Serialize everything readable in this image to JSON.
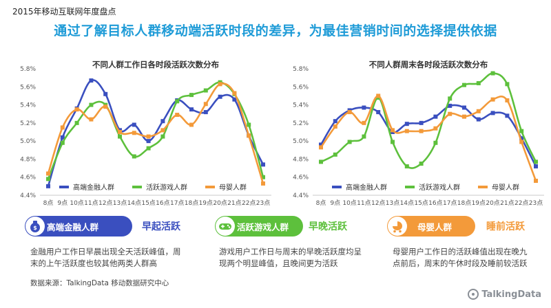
{
  "page": {
    "top_title": "2015年移动互联网年度盘点",
    "headline": "通过了解目标人群移动端活跃时段的差异，为最佳营销时间的选择提供依据",
    "source": "数据来源：TalkingData 移动数据研究中心",
    "logo_text": "TalkingData"
  },
  "colors": {
    "finance": "#3a4fbf",
    "gamer": "#5dc03c",
    "mother": "#f39a3a",
    "headline": "#1e9bd7"
  },
  "personas": [
    {
      "label": "高端金融人群",
      "icon": "money-bag-icon",
      "tag": "早起活跃",
      "color": "#3a4fbf",
      "desc_lines": [
        "金融用户工作日早晨出现全天活跃峰值，周",
        "末的上午活跃度也较其他两类人群高"
      ]
    },
    {
      "label": "活跃游戏人群",
      "icon": "gamepad-icon",
      "tag": "早晚活跃",
      "color": "#5dc03c",
      "desc_lines": [
        "游戏用户工作日与周末的早晚活跃度均呈",
        "现两个明显峰值，且晚间更为活跃"
      ]
    },
    {
      "label": "母婴人群",
      "icon": "stroller-icon",
      "tag": "睡前活跃",
      "color": "#f39a3a",
      "desc_lines": [
        "母婴用户工作日的活跃峰值出现在晚九",
        "点前后，周末的午休时段及睡前较活跃"
      ]
    }
  ],
  "chart_data": [
    {
      "type": "line",
      "title": "不同人群工作日各时段活跃次数分布",
      "categories": [
        "8点",
        "9点",
        "10点",
        "11点",
        "12点",
        "13点",
        "14点",
        "15点",
        "16点",
        "17点",
        "18点",
        "19点",
        "20点",
        "21点",
        "22点",
        "23点"
      ],
      "yticks": [
        "4.4%",
        "4.6%",
        "4.8%",
        "5.0%",
        "5.2%",
        "5.4%",
        "5.6%",
        "5.8%"
      ],
      "ylim": [
        4.4,
        5.8
      ],
      "legend_position": "bottom",
      "series": [
        {
          "name": "高端金融人群",
          "color": "#3a4fbf",
          "values": [
            4.5,
            5.04,
            5.36,
            5.67,
            5.52,
            5.12,
            5.18,
            5.0,
            5.22,
            5.45,
            5.35,
            5.32,
            5.49,
            5.46,
            5.06,
            4.74
          ]
        },
        {
          "name": "活跃游戏人群",
          "color": "#5dc03c",
          "values": [
            4.58,
            4.98,
            5.2,
            5.4,
            5.4,
            5.05,
            4.83,
            4.92,
            5.05,
            5.44,
            5.51,
            5.56,
            5.65,
            5.52,
            5.18,
            4.6
          ]
        },
        {
          "name": "母婴人群",
          "color": "#f39a3a",
          "values": [
            4.64,
            5.15,
            5.35,
            5.24,
            5.38,
            5.1,
            5.09,
            5.05,
            5.12,
            5.29,
            5.18,
            5.41,
            5.63,
            5.53,
            5.06,
            4.53
          ]
        }
      ]
    },
    {
      "type": "line",
      "title": "不同人群周末各时段活跃次数分布",
      "categories": [
        "8点",
        "9点",
        "10点",
        "11点",
        "12点",
        "13点",
        "14点",
        "15点",
        "16点",
        "17点",
        "18点",
        "19点",
        "20点",
        "21点",
        "22点",
        "23点"
      ],
      "yticks": [
        "4.4%",
        "4.6%",
        "4.8%",
        "5.0%",
        "5.2%",
        "5.4%",
        "5.6%",
        "5.8%"
      ],
      "ylim": [
        4.4,
        5.8
      ],
      "legend_position": "bottom",
      "series": [
        {
          "name": "高端金融人群",
          "color": "#3a4fbf",
          "values": [
            4.96,
            5.22,
            5.34,
            5.37,
            5.32,
            5.1,
            5.19,
            5.2,
            5.27,
            5.39,
            5.37,
            5.24,
            5.31,
            5.28,
            5.03,
            4.72
          ]
        },
        {
          "name": "活跃游戏人群",
          "color": "#5dc03c",
          "values": [
            4.77,
            4.85,
            4.99,
            5.05,
            5.48,
            4.99,
            4.72,
            4.75,
            4.98,
            5.47,
            5.62,
            5.64,
            5.75,
            5.63,
            5.11,
            4.77
          ]
        },
        {
          "name": "母婴人群",
          "color": "#f39a3a",
          "values": [
            4.93,
            5.16,
            5.32,
            5.2,
            5.5,
            5.12,
            5.11,
            5.11,
            5.14,
            5.3,
            5.27,
            5.33,
            5.46,
            5.45,
            4.99,
            4.56
          ]
        }
      ]
    }
  ]
}
